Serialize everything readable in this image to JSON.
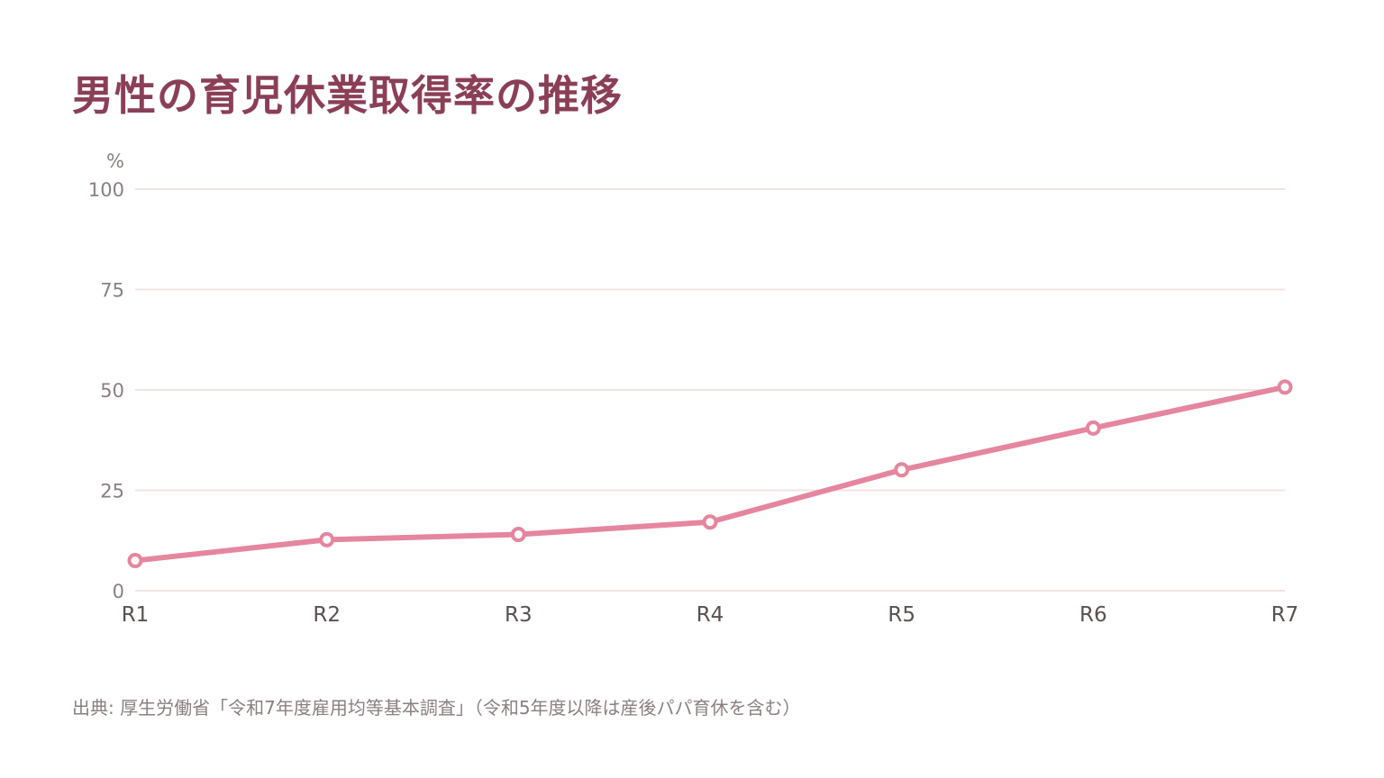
{
  "title": "男性の育児休業取得率の推移",
  "source_note": "出典: 厚生労働省「令和7年度雇用均等基本調査」（令和5年度以降は産後パパ育休を含む）",
  "colors": {
    "title": "#8b3f57",
    "line": "#e5869e",
    "grid": "#f0e4e2",
    "tick_label": "#8a8080",
    "x_label": "#5a5050"
  },
  "chart_data": {
    "type": "line",
    "y_unit_label": "%",
    "categories": [
      "R1",
      "R2",
      "R3",
      "R4",
      "R5",
      "R6",
      "R7"
    ],
    "values": [
      7.5,
      12.7,
      14.0,
      17.1,
      30.1,
      40.5,
      50.7
    ],
    "ylim": [
      0,
      100
    ],
    "yticks": [
      0,
      25,
      50,
      75,
      100
    ],
    "grid": true,
    "markers": "hollow-circle"
  }
}
